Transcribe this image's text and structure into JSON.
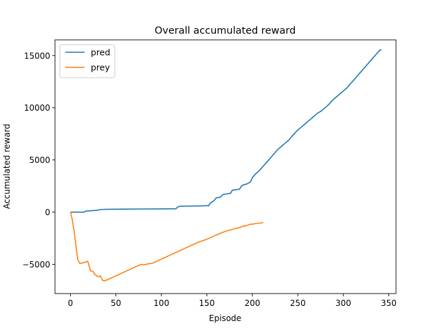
{
  "chart_data": {
    "type": "line",
    "title": "Overall accumulated reward",
    "xlabel": "Episode",
    "ylabel": "Accumulated reward",
    "xlim": [
      -17,
      358
    ],
    "ylim": [
      -7800,
      16500
    ],
    "xticks": [
      0,
      50,
      100,
      150,
      200,
      250,
      300,
      350
    ],
    "yticks": [
      -5000,
      0,
      5000,
      10000,
      15000
    ],
    "grid": false,
    "legend_position": "top-left",
    "series": [
      {
        "name": "pred",
        "color": "#1f77b4",
        "points": [
          [
            0,
            0
          ],
          [
            10,
            0
          ],
          [
            15,
            0
          ],
          [
            17,
            100
          ],
          [
            25,
            150
          ],
          [
            30,
            180
          ],
          [
            33,
            250
          ],
          [
            40,
            270
          ],
          [
            60,
            290
          ],
          [
            80,
            300
          ],
          [
            100,
            310
          ],
          [
            116,
            320
          ],
          [
            118,
            500
          ],
          [
            120,
            560
          ],
          [
            130,
            580
          ],
          [
            140,
            590
          ],
          [
            145,
            600
          ],
          [
            150,
            620
          ],
          [
            152,
            600
          ],
          [
            153,
            800
          ],
          [
            156,
            1000
          ],
          [
            158,
            1100
          ],
          [
            160,
            1350
          ],
          [
            165,
            1450
          ],
          [
            168,
            1700
          ],
          [
            172,
            1750
          ],
          [
            176,
            1800
          ],
          [
            178,
            2100
          ],
          [
            182,
            2150
          ],
          [
            186,
            2200
          ],
          [
            188,
            2500
          ],
          [
            190,
            2600
          ],
          [
            194,
            2700
          ],
          [
            198,
            2900
          ],
          [
            200,
            3300
          ],
          [
            204,
            3700
          ],
          [
            208,
            4000
          ],
          [
            212,
            4400
          ],
          [
            216,
            4800
          ],
          [
            220,
            5200
          ],
          [
            224,
            5600
          ],
          [
            228,
            6000
          ],
          [
            232,
            6300
          ],
          [
            236,
            6600
          ],
          [
            240,
            6900
          ],
          [
            244,
            7300
          ],
          [
            248,
            7700
          ],
          [
            252,
            8000
          ],
          [
            256,
            8300
          ],
          [
            260,
            8600
          ],
          [
            264,
            8900
          ],
          [
            268,
            9200
          ],
          [
            272,
            9500
          ],
          [
            276,
            9700
          ],
          [
            280,
            10000
          ],
          [
            284,
            10300
          ],
          [
            288,
            10700
          ],
          [
            292,
            11000
          ],
          [
            296,
            11300
          ],
          [
            300,
            11600
          ],
          [
            304,
            11900
          ],
          [
            308,
            12300
          ],
          [
            312,
            12700
          ],
          [
            316,
            13100
          ],
          [
            320,
            13500
          ],
          [
            324,
            13900
          ],
          [
            328,
            14300
          ],
          [
            332,
            14700
          ],
          [
            336,
            15100
          ],
          [
            340,
            15500
          ],
          [
            342,
            15550
          ]
        ]
      },
      {
        "name": "prey",
        "color": "#ff7f0e",
        "points": [
          [
            0,
            0
          ],
          [
            2,
            -700
          ],
          [
            4,
            -1800
          ],
          [
            6,
            -3200
          ],
          [
            8,
            -4500
          ],
          [
            10,
            -4900
          ],
          [
            12,
            -4900
          ],
          [
            16,
            -4800
          ],
          [
            19,
            -4700
          ],
          [
            20,
            -5000
          ],
          [
            22,
            -5600
          ],
          [
            25,
            -5700
          ],
          [
            27,
            -6000
          ],
          [
            29,
            -6100
          ],
          [
            31,
            -6200
          ],
          [
            33,
            -6100
          ],
          [
            35,
            -6500
          ],
          [
            37,
            -6600
          ],
          [
            40,
            -6500
          ],
          [
            45,
            -6300
          ],
          [
            50,
            -6100
          ],
          [
            60,
            -5700
          ],
          [
            70,
            -5300
          ],
          [
            78,
            -5000
          ],
          [
            80,
            -5050
          ],
          [
            83,
            -5000
          ],
          [
            86,
            -4950
          ],
          [
            90,
            -4900
          ],
          [
            100,
            -4500
          ],
          [
            110,
            -4100
          ],
          [
            120,
            -3700
          ],
          [
            130,
            -3300
          ],
          [
            140,
            -2900
          ],
          [
            150,
            -2600
          ],
          [
            160,
            -2200
          ],
          [
            170,
            -1850
          ],
          [
            180,
            -1600
          ],
          [
            185,
            -1500
          ],
          [
            190,
            -1350
          ],
          [
            195,
            -1250
          ],
          [
            198,
            -1150
          ],
          [
            200,
            -1150
          ],
          [
            204,
            -1100
          ],
          [
            208,
            -1050
          ],
          [
            212,
            -1000
          ]
        ]
      }
    ]
  }
}
